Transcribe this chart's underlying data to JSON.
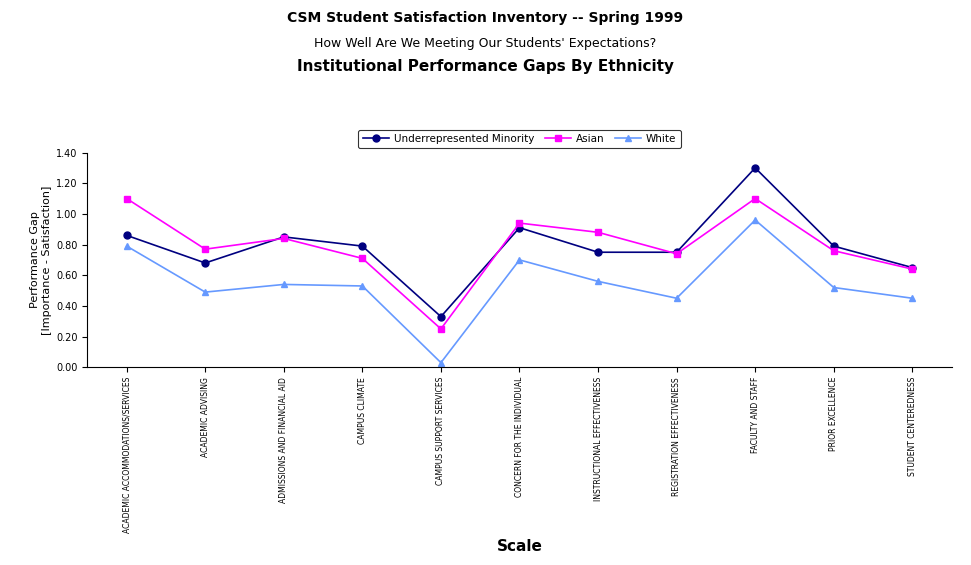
{
  "title_line1": "CSM Student Satisfaction Inventory -- Spring 1999",
  "title_line2": "How Well Are We Meeting Our Students' Expectations?",
  "title_line3": "Institutional Performance Gaps By Ethnicity",
  "xlabel": "Scale",
  "ylabel": "Performance Gap\n[Importance - Satisfaction]",
  "ylim": [
    0.0,
    1.4
  ],
  "yticks": [
    0.0,
    0.2,
    0.4,
    0.6,
    0.8,
    1.0,
    1.2,
    1.4
  ],
  "categories": [
    "ACADEMIC ACCOMMODATIONS/SERVICES",
    "ACADEMIC ADVISING",
    "ADMISSIONS AND FINANCIAL AID",
    "CAMPUS CLIMATE",
    "CAMPUS SUPPORT SERVICES",
    "CONCERN FOR THE INDIVIDUAL",
    "INSTRUCTIONAL EFFECTIVENESS",
    "REGISTRATION EFFECTIVENESS",
    "FACULTY AND STAFF",
    "PRIOR EXCELLENCE",
    "STUDENT CENTEREDNESS"
  ],
  "series": [
    {
      "name": "Underrepresented Minority",
      "color": "#000080",
      "marker": "o",
      "values": [
        0.86,
        0.68,
        0.85,
        0.79,
        0.33,
        0.91,
        0.75,
        0.75,
        1.3,
        0.79,
        0.65
      ]
    },
    {
      "name": "Asian",
      "color": "#FF00FF",
      "marker": "s",
      "values": [
        1.1,
        0.77,
        0.84,
        0.71,
        0.25,
        0.94,
        0.88,
        0.74,
        1.1,
        0.76,
        0.64
      ]
    },
    {
      "name": "White",
      "color": "#6699FF",
      "marker": "^",
      "values": [
        0.79,
        0.49,
        0.54,
        0.53,
        0.03,
        0.7,
        0.56,
        0.45,
        0.96,
        0.52,
        0.45
      ]
    }
  ],
  "background_color": "#FFFFFF"
}
